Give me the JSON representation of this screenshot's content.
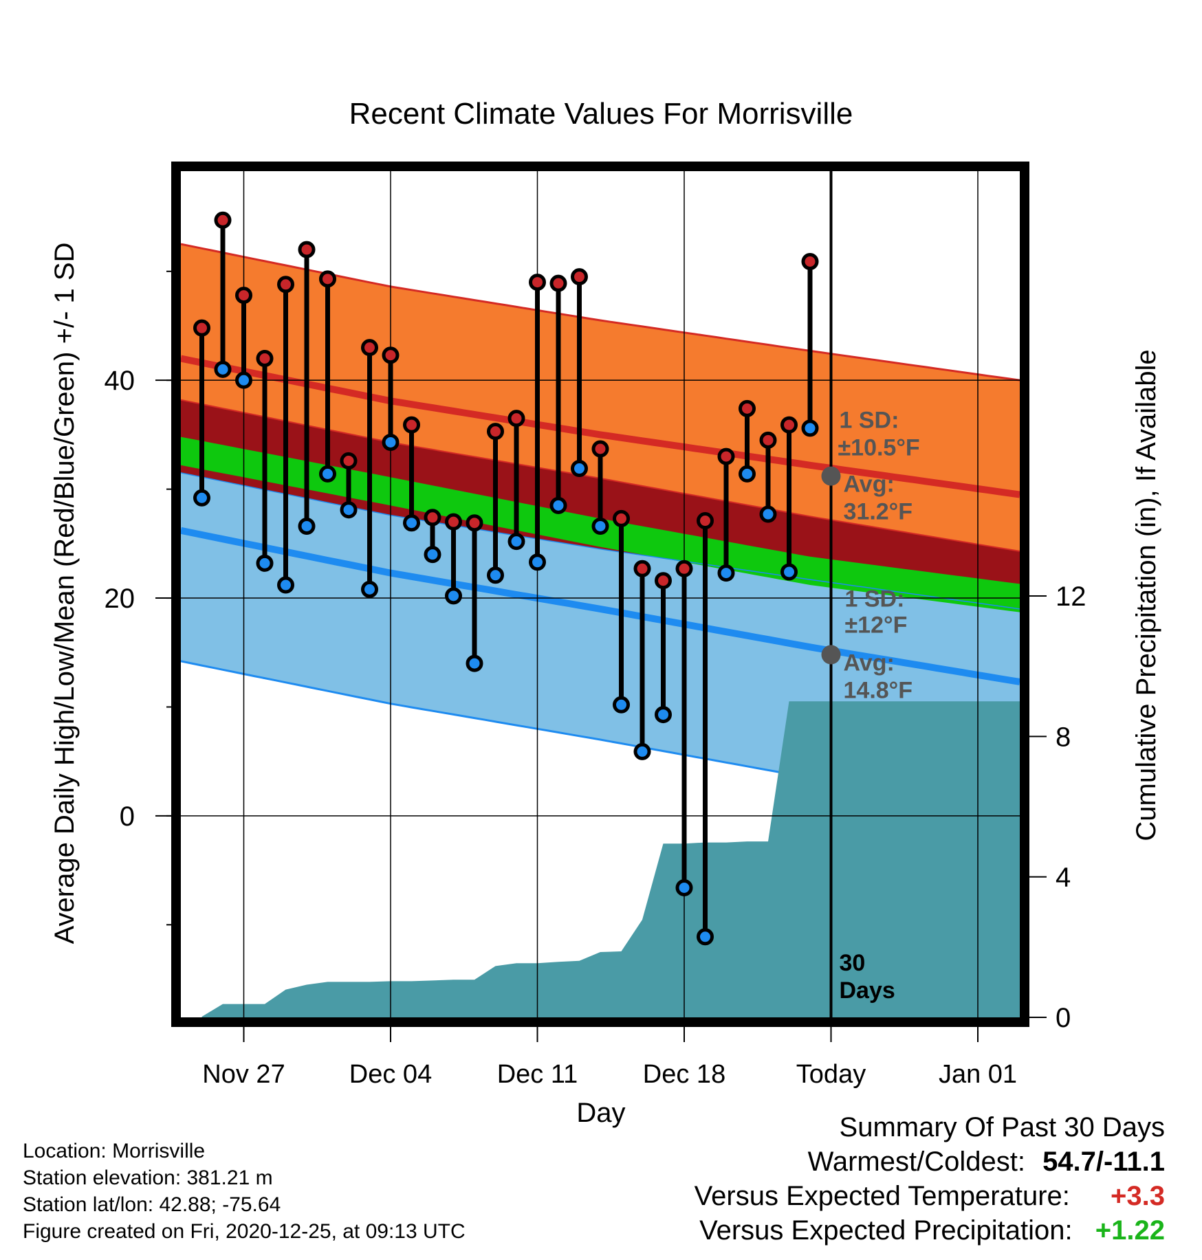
{
  "chart_data": {
    "type": "line",
    "title": "Recent Climate Values For Morrisville",
    "xlabel": "Day",
    "ylabel": "Average Daily High/Low/Mean (Red/Blue/Green) +/- 1 SD",
    "y2label": "Cumulative Precipitation (in), If Available",
    "x_tick_labels": [
      "Nov 27",
      "Dec 04",
      "Dec 11",
      "Dec 18",
      "Today",
      "Jan 01"
    ],
    "y_tick_labels": [
      "0",
      "20",
      "40"
    ],
    "y2_tick_labels": [
      "0",
      "4",
      "8",
      "12"
    ],
    "x_range": [
      "2020-11-24",
      "2021-01-03"
    ],
    "ylim": [
      -18.5,
      59.2
    ],
    "y2lim": [
      0,
      24.1
    ],
    "grid": true,
    "today": "2020-12-25",
    "daily_dates": [
      "2020-11-25",
      "2020-11-26",
      "2020-11-27",
      "2020-11-28",
      "2020-11-29",
      "2020-11-30",
      "2020-12-01",
      "2020-12-02",
      "2020-12-03",
      "2020-12-04",
      "2020-12-05",
      "2020-12-06",
      "2020-12-07",
      "2020-12-08",
      "2020-12-09",
      "2020-12-10",
      "2020-12-11",
      "2020-12-12",
      "2020-12-13",
      "2020-12-14",
      "2020-12-15",
      "2020-12-16",
      "2020-12-17",
      "2020-12-18",
      "2020-12-19",
      "2020-12-20",
      "2020-12-21",
      "2020-12-22",
      "2020-12-23",
      "2020-12-24"
    ],
    "series": [
      {
        "name": "High",
        "color": "#c8262a",
        "values": [
          44.8,
          54.7,
          47.8,
          42.0,
          48.8,
          52.0,
          49.3,
          32.6,
          43.0,
          42.3,
          35.9,
          27.4,
          27.0,
          26.9,
          35.3,
          36.5,
          49.0,
          48.9,
          49.5,
          33.7,
          27.3,
          22.7,
          21.6,
          22.7,
          27.1,
          33.0,
          37.4,
          34.5,
          35.9,
          50.9
        ]
      },
      {
        "name": "Low",
        "color": "#1e8bf0",
        "values": [
          29.2,
          41.0,
          40.0,
          23.2,
          21.2,
          26.6,
          31.4,
          28.1,
          20.8,
          34.3,
          26.9,
          24.0,
          20.2,
          14.0,
          22.1,
          25.2,
          23.3,
          28.5,
          31.9,
          26.6,
          10.2,
          5.9,
          9.3,
          -6.6,
          -11.1,
          22.3,
          31.4,
          27.7,
          22.4,
          35.6
        ]
      },
      {
        "name": "Cumulative Precipitation",
        "color": "#4a9ba6",
        "values": [
          0.02,
          0.38,
          0.38,
          0.38,
          0.79,
          0.93,
          1.01,
          1.01,
          1.01,
          1.03,
          1.03,
          1.05,
          1.07,
          1.07,
          1.46,
          1.54,
          1.54,
          1.58,
          1.61,
          1.86,
          1.88,
          2.78,
          4.95,
          4.95,
          4.98,
          4.98,
          5.01,
          5.01,
          9.0,
          9.0
        ]
      }
    ],
    "normals": {
      "dates": [
        "2020-11-24",
        "2020-12-04",
        "2020-12-14",
        "2020-12-24",
        "2021-01-03"
      ],
      "high_avg": [
        42.0,
        38.1,
        35.0,
        32.2,
        29.5
      ],
      "high_sd": 10.5,
      "low_avg": [
        26.2,
        22.3,
        19.0,
        15.5,
        12.3
      ],
      "low_sd": 12,
      "mean_avg": [
        33.5,
        29.8,
        26.0,
        22.5,
        20.0
      ]
    },
    "annotations": {
      "high_sd_label": "1 SD:",
      "high_sd_value": "±10.5°F",
      "high_avg_label": "Avg:",
      "high_avg_value": "31.2°F",
      "high_avg_at_today": 31.2,
      "low_sd_label": "1 SD:",
      "low_sd_value": "±12°F",
      "low_avg_label": "Avg:",
      "low_avg_value": "14.8°F",
      "low_avg_at_today": 14.8,
      "period_label_1": "30",
      "period_label_2": "Days"
    },
    "colors": {
      "high_band": "#f57b2e",
      "high_line": "#d42a24",
      "overlap_band": "#9a1218",
      "mean_band": "#0ec80e",
      "low_band": "#80c0e6",
      "low_line": "#1e8bf0",
      "precip_fill": "#4a9ba6",
      "avg_marker": "#555555"
    }
  },
  "footer": {
    "location": "Location: Morrisville",
    "elevation": "Station elevation: 381.21 m",
    "latlon": "Station lat/lon: 42.88; -75.64",
    "created": "Figure created on Fri, 2020-12-25, at 09:13 UTC"
  },
  "summary": {
    "title": "Summary Of Past 30 Days",
    "warm_cold_label": "Warmest/Coldest:",
    "warm_cold_value": "54.7/-11.1",
    "temp_label": "Versus Expected Temperature:",
    "temp_value": "+3.3",
    "temp_color": "#d42a24",
    "precip_label": "Versus Expected Precipitation:",
    "precip_value": "+1.22",
    "precip_color": "#1ab41a"
  }
}
